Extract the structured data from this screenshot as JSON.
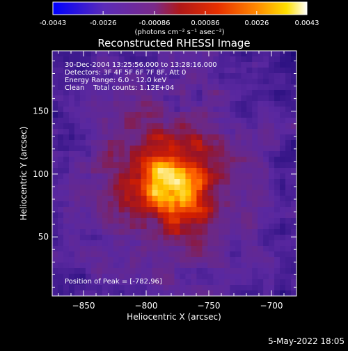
{
  "chart_data": {
    "type": "heatmap",
    "title": "Reconstructed RHESSI Image",
    "info_lines": [
      "30-Dec-2004 13:25:56.000 to 13:28:16.000",
      "Detectors: 3F 4F 5F 6F 7F 8F, Att 0",
      "Energy Range: 6.0 - 12.0 keV",
      "Clean    Total counts: 1.12E+04"
    ],
    "peak_label": "Position of Peak = [-782,96]",
    "peak": [
      -782,
      96
    ],
    "xlabel": "Heliocentric X (arcsec)",
    "ylabel": "Heliocentric Y (arcsec)",
    "xlim": [
      -875,
      -680
    ],
    "ylim": [
      3,
      198
    ],
    "xticks": [
      -850,
      -800,
      -750,
      -700
    ],
    "yticks": [
      50,
      100,
      150
    ],
    "colorbar": {
      "range": [
        -0.0043,
        0.0043
      ],
      "ticks": [
        {
          "value": -0.0043,
          "label": "-0.0043"
        },
        {
          "value": -0.0026,
          "label": "-0.0026"
        },
        {
          "value": -0.00086,
          "label": "-0.00086"
        },
        {
          "value": 0.00086,
          "label": "0.00086"
        },
        {
          "value": 0.0026,
          "label": "0.0026"
        },
        {
          "value": 0.0043,
          "label": "0.0043"
        }
      ],
      "unit": "(photons cm⁻² s⁻¹ asec⁻²)"
    }
  },
  "footer": {
    "date": "5-May-2022 18:05"
  }
}
